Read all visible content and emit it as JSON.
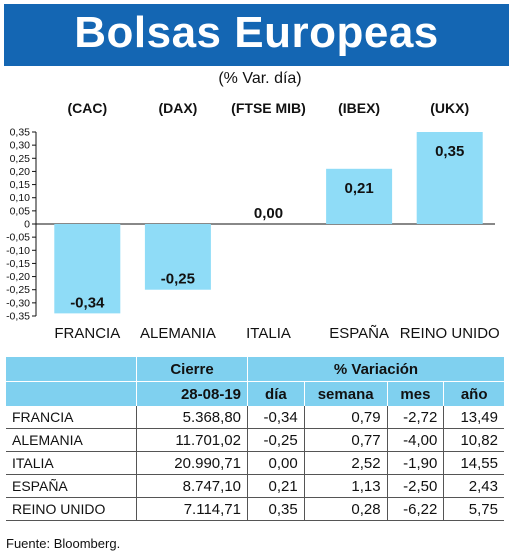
{
  "title": "Bolsas Europeas",
  "subtitle": "(% Var. día)",
  "chart_data": {
    "type": "bar",
    "categories": [
      "FRANCIA",
      "ALEMANIA",
      "ITALIA",
      "ESPAÑA",
      "REINO UNIDO"
    ],
    "index_labels": [
      "(CAC)",
      "(DAX)",
      "(FTSE MIB)",
      "(IBEX)",
      "(UKX)"
    ],
    "values": [
      -0.34,
      -0.25,
      0.0,
      0.21,
      0.35
    ],
    "value_labels": [
      "-0,34",
      "-0,25",
      "0,00",
      "0,21",
      "0,35"
    ],
    "ylim": [
      -0.35,
      0.35
    ],
    "yticks": [
      "0,35",
      "0,30",
      "0,25",
      "0,20",
      "0,15",
      "0,10",
      "0,05",
      "0",
      "-0,05",
      "-0,10",
      "-0,15",
      "-0,20",
      "-0,25",
      "-0,30",
      "-0,35"
    ],
    "bar_color": "#8fdcf7",
    "grid": false
  },
  "table": {
    "header_cierre": "Cierre",
    "header_variacion": "% Variación",
    "date": "28-08-19",
    "columns": [
      "día",
      "semana",
      "mes",
      "año"
    ],
    "rows": [
      {
        "name": "FRANCIA",
        "cierre": "5.368,80",
        "dia": "-0,34",
        "semana": "0,79",
        "mes": "-2,72",
        "ano": "13,49"
      },
      {
        "name": "ALEMANIA",
        "cierre": "11.701,02",
        "dia": "-0,25",
        "semana": "0,77",
        "mes": "-4,00",
        "ano": "10,82"
      },
      {
        "name": "ITALIA",
        "cierre": "20.990,71",
        "dia": "0,00",
        "semana": "2,52",
        "mes": "-1,90",
        "ano": "14,55"
      },
      {
        "name": "ESPAÑA",
        "cierre": "8.747,10",
        "dia": "0,21",
        "semana": "1,13",
        "mes": "-2,50",
        "ano": "2,43"
      },
      {
        "name": "REINO UNIDO",
        "cierre": "7.114,71",
        "dia": "0,35",
        "semana": "0,28",
        "mes": "-6,22",
        "ano": "5,75"
      }
    ]
  },
  "source": "Fuente: Bloomberg."
}
